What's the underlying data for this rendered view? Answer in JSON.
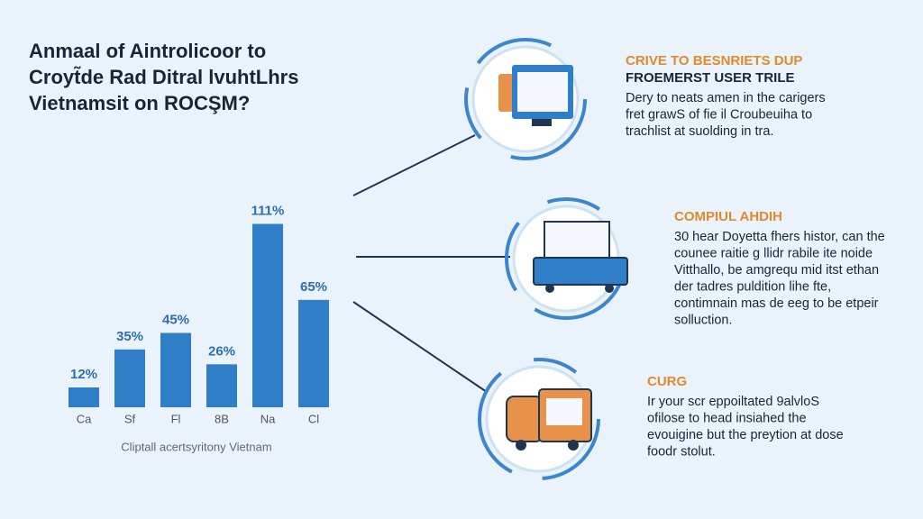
{
  "chart_data": {
    "type": "bar",
    "title": [
      "Anmaal of Aintrolicoor to",
      "Croyt̃de Rad Ditral lvuhtLhrs",
      "Vietnamsit on ROCŞM?"
    ],
    "categories": [
      "Ca",
      "Sf",
      "Fl",
      "8B",
      "Na",
      "Cl"
    ],
    "values": [
      12,
      35,
      45,
      26,
      111,
      65
    ],
    "value_labels": [
      "12%",
      "35%",
      "45%",
      "26%",
      "111%",
      "65%"
    ],
    "color": "#2f7fc8",
    "ylim": [
      0,
      120
    ],
    "caption": "Cliptall acertsyritony Vietnam"
  },
  "callouts": [
    {
      "title": "CRIVE TO BESNRIETS DUP",
      "subtitle": "FROEMERST USER TRILE",
      "lines": [
        "Dery to neats amen in the carigers",
        "fret grawS of fie il Croubeuiha to",
        "trachlist at suolding in tra."
      ]
    },
    {
      "title": "COMPIUL AHDIH",
      "lines": [
        "30 hear Doyetta fhers histor, can the",
        "counee raitie g llidr rabile ite noide",
        "Vitthallo, be amgrequ mid itst ethan",
        "der tadres puldition lihe fte,",
        "contimnain mas de eeg to be etpeir",
        "solluction."
      ]
    },
    {
      "title": "CURG",
      "lines": [
        "Ir your scr eppoiltated 9alvloS",
        "ofilose to head insiahed the",
        "evouigine but the preytion at dose",
        "foodr stolut."
      ]
    }
  ]
}
